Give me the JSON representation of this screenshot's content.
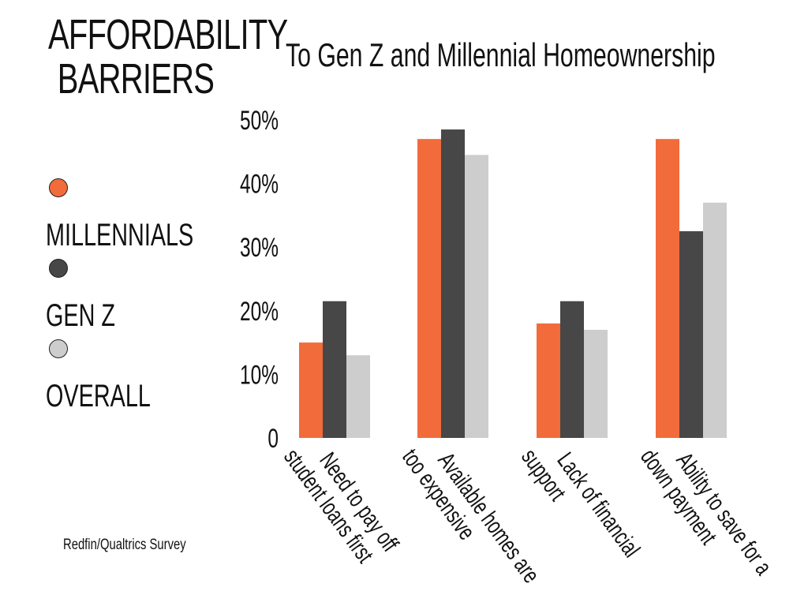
{
  "header": {
    "title_line1": "AFFORDABILITY",
    "title_line2": "BARRIERS",
    "subtitle": "To Gen Z and Millennial Homeownership"
  },
  "legend": {
    "items": [
      {
        "label": "MILLENNIALS",
        "color": "#F26B3A"
      },
      {
        "label": "GEN Z",
        "color": "#474747"
      },
      {
        "label": "OVERALL",
        "color": "#CDCDCD"
      }
    ]
  },
  "footer": {
    "source": "Redfin/Qualtrics Survey"
  },
  "chart_data": {
    "type": "bar",
    "title": "To Gen Z and Millennial Homeownership",
    "categories": [
      [
        "Need to pay off",
        "student loans first"
      ],
      [
        "Available homes are",
        "too expensive"
      ],
      [
        "Lack of financial",
        "support"
      ],
      [
        "Ability to save for a",
        "down payment"
      ]
    ],
    "series": [
      {
        "name": "MILLENNIALS",
        "color": "#F26B3A",
        "values": [
          15,
          47,
          18,
          47
        ]
      },
      {
        "name": "GEN Z",
        "color": "#474747",
        "values": [
          21.5,
          48.5,
          21.5,
          32.5
        ]
      },
      {
        "name": "OVERALL",
        "color": "#CDCDCD",
        "values": [
          13,
          44.5,
          17,
          37
        ]
      }
    ],
    "ylim": [
      0,
      50
    ],
    "yticks": [
      0,
      10,
      20,
      30,
      40,
      50
    ],
    "ytick_labels": [
      "0",
      "10%",
      "20%",
      "30%",
      "40%",
      "50%"
    ],
    "xlabel": "",
    "ylabel": "",
    "grid": false,
    "legend_position": "left"
  }
}
